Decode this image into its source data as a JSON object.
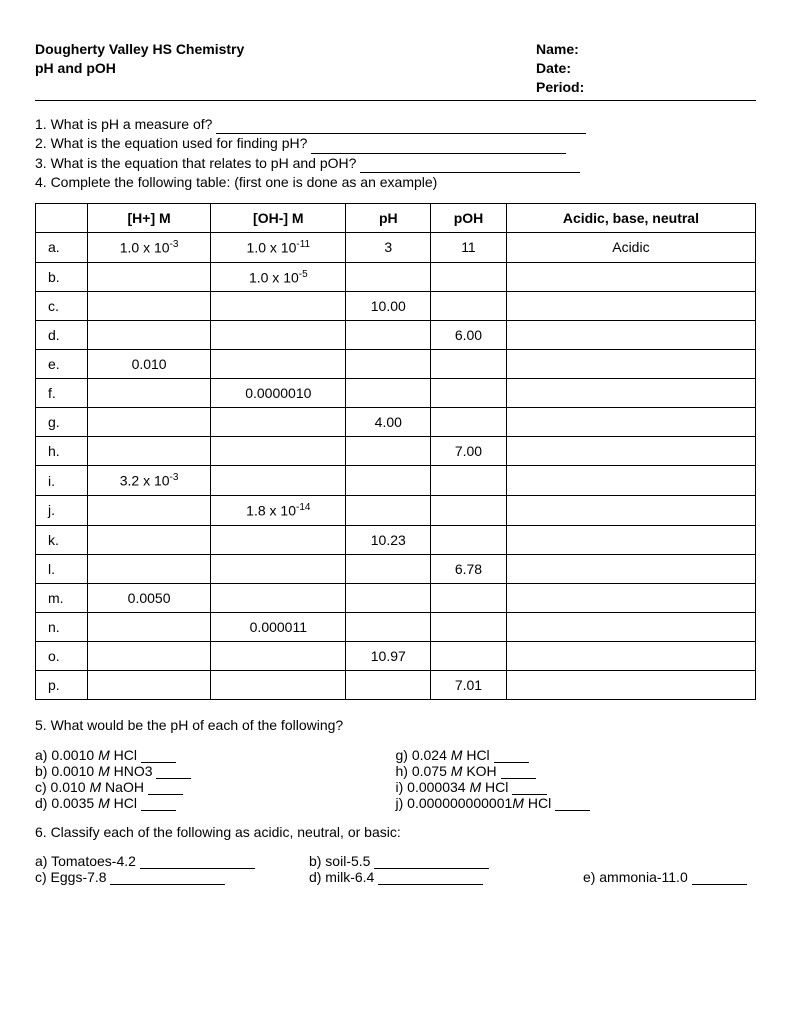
{
  "header": {
    "school": "Dougherty Valley HS Chemistry",
    "topic": "pH and pOH",
    "name_label": "Name:",
    "date_label": "Date:",
    "period_label": "Period:"
  },
  "q1": "1. What is pH a measure of?",
  "q2": "2. What is the equation used for finding pH?",
  "q3": "3. What is the equation that relates to pH and pOH?",
  "q4": "4. Complete the following table: (first one is done as an example)",
  "table": {
    "headers": {
      "h1": "[H+] M",
      "h2": "[OH-] M",
      "h3": "pH",
      "h4": "pOH",
      "h5": "Acidic, base, neutral"
    },
    "rows": [
      {
        "label": "a.",
        "h": "1.0 x 10",
        "h_exp": "-3",
        "oh": "1.0 x 10",
        "oh_exp": "-11",
        "ph": "3",
        "poh": "11",
        "cls": "Acidic"
      },
      {
        "label": "b.",
        "h": "",
        "h_exp": "",
        "oh": "1.0 x 10",
        "oh_exp": "-5",
        "ph": "",
        "poh": "",
        "cls": ""
      },
      {
        "label": "c.",
        "h": "",
        "h_exp": "",
        "oh": "",
        "oh_exp": "",
        "ph": "10.00",
        "poh": "",
        "cls": ""
      },
      {
        "label": "d.",
        "h": "",
        "h_exp": "",
        "oh": "",
        "oh_exp": "",
        "ph": "",
        "poh": "6.00",
        "cls": ""
      },
      {
        "label": "e.",
        "h": "0.010",
        "h_exp": "",
        "oh": "",
        "oh_exp": "",
        "ph": "",
        "poh": "",
        "cls": ""
      },
      {
        "label": "f.",
        "h": "",
        "h_exp": "",
        "oh": "0.0000010",
        "oh_exp": "",
        "ph": "",
        "poh": "",
        "cls": ""
      },
      {
        "label": "g.",
        "h": "",
        "h_exp": "",
        "oh": "",
        "oh_exp": "",
        "ph": "4.00",
        "poh": "",
        "cls": ""
      },
      {
        "label": "h.",
        "h": "",
        "h_exp": "",
        "oh": "",
        "oh_exp": "",
        "ph": "",
        "poh": "7.00",
        "cls": ""
      },
      {
        "label": "i.",
        "h": "3.2 x 10",
        "h_exp": "-3",
        "oh": "",
        "oh_exp": "",
        "ph": "",
        "poh": "",
        "cls": ""
      },
      {
        "label": "j.",
        "h": "",
        "h_exp": "",
        "oh": "1.8 x 10",
        "oh_exp": "-14",
        "ph": "",
        "poh": "",
        "cls": ""
      },
      {
        "label": "k.",
        "h": "",
        "h_exp": "",
        "oh": "",
        "oh_exp": "",
        "ph": "10.23",
        "poh": "",
        "cls": ""
      },
      {
        "label": "l.",
        "h": "",
        "h_exp": "",
        "oh": "",
        "oh_exp": "",
        "ph": "",
        "poh": "6.78",
        "cls": ""
      },
      {
        "label": "m.",
        "h": "0.0050",
        "h_exp": "",
        "oh": "",
        "oh_exp": "",
        "ph": "",
        "poh": "",
        "cls": ""
      },
      {
        "label": "n.",
        "h": "",
        "h_exp": "",
        "oh": "0.000011",
        "oh_exp": "",
        "ph": "",
        "poh": "",
        "cls": ""
      },
      {
        "label": "o.",
        "h": "",
        "h_exp": "",
        "oh": "",
        "oh_exp": "",
        "ph": "10.97",
        "poh": "",
        "cls": ""
      },
      {
        "label": "p.",
        "h": "",
        "h_exp": "",
        "oh": "",
        "oh_exp": "",
        "ph": "",
        "poh": "7.01",
        "cls": ""
      }
    ]
  },
  "q5": "5. What would be the pH of each of the following?",
  "q5_items": {
    "a": "a) 0.0010 ",
    "a_chem": "M",
    "a_tail": " HCl ",
    "b": "b) 0.0010 ",
    "b_chem": "M",
    "b_tail": " HNO3 ",
    "c": "c) 0.010 ",
    "c_chem": "M",
    "c_tail": " NaOH ",
    "d": "d) 0.0035 ",
    "d_chem": "M",
    "d_tail": " HCl ",
    "g": "g) 0.024 ",
    "g_chem": "M",
    "g_tail": " HCl ",
    "h": "h) 0.075 ",
    "h_chem": "M",
    "h_tail": " KOH ",
    "i": " i) 0.000034 ",
    "i_chem": "M",
    "i_tail": " HCl ",
    "j": "j) 0.000000000001",
    "j_chem": "M",
    "j_tail": " HCl "
  },
  "q6": "6. Classify each of the following as acidic, neutral, or basic:",
  "q6_items": {
    "a": "a) Tomatoes-4.2 ",
    "b": "b) soil-5.5 ",
    "c": "c) Eggs-7.8 ",
    "d": "d) milk-6.4 ",
    "e": "e) ammonia-11.0 "
  }
}
